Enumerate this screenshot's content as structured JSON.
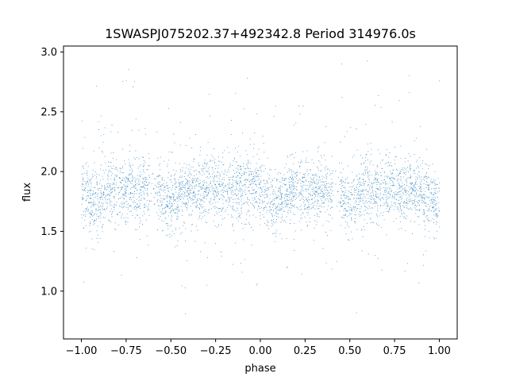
{
  "chart_data": {
    "type": "scatter",
    "title": "1SWASPJ075202.37+492342.8 Period 314976.0s",
    "xlabel": "phase",
    "ylabel": "flux",
    "xlim": [
      -1.1,
      1.1
    ],
    "ylim": [
      0.6,
      3.05
    ],
    "xticks": [
      "−1.00",
      "−0.75",
      "−0.50",
      "−0.25",
      "0.00",
      "0.25",
      "0.50",
      "0.75",
      "1.00"
    ],
    "yticks": [
      "1.0",
      "1.5",
      "2.0",
      "2.5",
      "3.0"
    ],
    "grid": false,
    "point_color": "#1f77b4",
    "series": [
      {
        "phase_range": [
          -1.0,
          1.0
        ],
        "flux_median": 1.85,
        "band_core": [
          1.55,
          2.1
        ],
        "band_outer": [
          0.7,
          2.97
        ],
        "gaps_phase": [
          -0.6,
          0.42
        ],
        "dips_phase": [
          -0.92,
          -0.5,
          0.08,
          0.5,
          1.0
        ]
      }
    ]
  }
}
